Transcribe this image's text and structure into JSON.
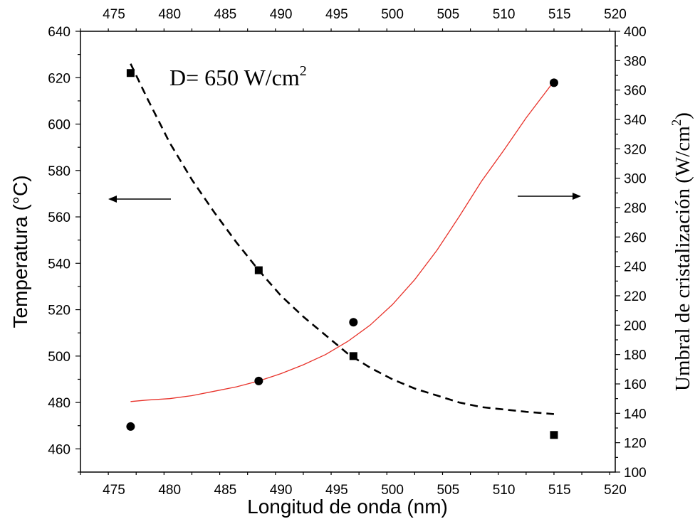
{
  "chart_data": {
    "type": "scatter",
    "title": "",
    "annotation": {
      "prefix": "D= 650 W/cm",
      "superscript": "2"
    },
    "xlabel": "Longitud de onda (nm)",
    "xlim": [
      472,
      520
    ],
    "xticks": [
      475,
      480,
      485,
      490,
      495,
      500,
      505,
      510,
      515,
      520
    ],
    "ylabel_left": "Temperatura (°C)",
    "ylim_left": [
      450,
      640
    ],
    "yticks_left": [
      460,
      480,
      500,
      520,
      540,
      560,
      580,
      600,
      620,
      640
    ],
    "ylabel_right": {
      "prefix": "Umbral de cristalización (W/cm",
      "superscript": "2",
      "suffix": ")"
    },
    "ylim_right": [
      100,
      400
    ],
    "yticks_right": [
      100,
      120,
      140,
      160,
      180,
      200,
      220,
      240,
      260,
      280,
      300,
      320,
      340,
      360,
      380,
      400
    ],
    "arrows": {
      "left": "points to left axis",
      "right": "points to right axis"
    },
    "series": [
      {
        "marker": "square",
        "axis": "left",
        "color": "#000000",
        "points": [
          [
            476.5,
            622
          ],
          [
            488,
            537
          ],
          [
            496.5,
            500
          ],
          [
            514.5,
            466
          ]
        ],
        "fit": {
          "style": "dashed",
          "color": "#000000",
          "points": [
            [
              476.5,
              626
            ],
            [
              478,
              611
            ],
            [
              480,
              592
            ],
            [
              482,
              576
            ],
            [
              484,
              562
            ],
            [
              486,
              549
            ],
            [
              488,
              537
            ],
            [
              490,
              526
            ],
            [
              492,
              517
            ],
            [
              494,
              509
            ],
            [
              496,
              501
            ],
            [
              498,
              495
            ],
            [
              500,
              490
            ],
            [
              502,
              486
            ],
            [
              504,
              483
            ],
            [
              506,
              480
            ],
            [
              508,
              478
            ],
            [
              510,
              477
            ],
            [
              512,
              476
            ],
            [
              514.5,
              475
            ]
          ]
        }
      },
      {
        "marker": "circle",
        "axis": "right",
        "color": "#000000",
        "points": [
          [
            476.5,
            131
          ],
          [
            488,
            162
          ],
          [
            496.5,
            202
          ],
          [
            514.5,
            365
          ]
        ],
        "fit": {
          "style": "solid",
          "color": "#e8322a",
          "points": [
            [
              476.5,
              148
            ],
            [
              478,
              149
            ],
            [
              480,
              150
            ],
            [
              482,
              152
            ],
            [
              484,
              155
            ],
            [
              486,
              158
            ],
            [
              488,
              162
            ],
            [
              490,
              167
            ],
            [
              492,
              173
            ],
            [
              494,
              180
            ],
            [
              496,
              189
            ],
            [
              498,
              200
            ],
            [
              500,
              214
            ],
            [
              502,
              231
            ],
            [
              504,
              251
            ],
            [
              506,
              274
            ],
            [
              508,
              298
            ],
            [
              510,
              319
            ],
            [
              512,
              341
            ],
            [
              514.5,
              366
            ]
          ]
        }
      }
    ]
  }
}
